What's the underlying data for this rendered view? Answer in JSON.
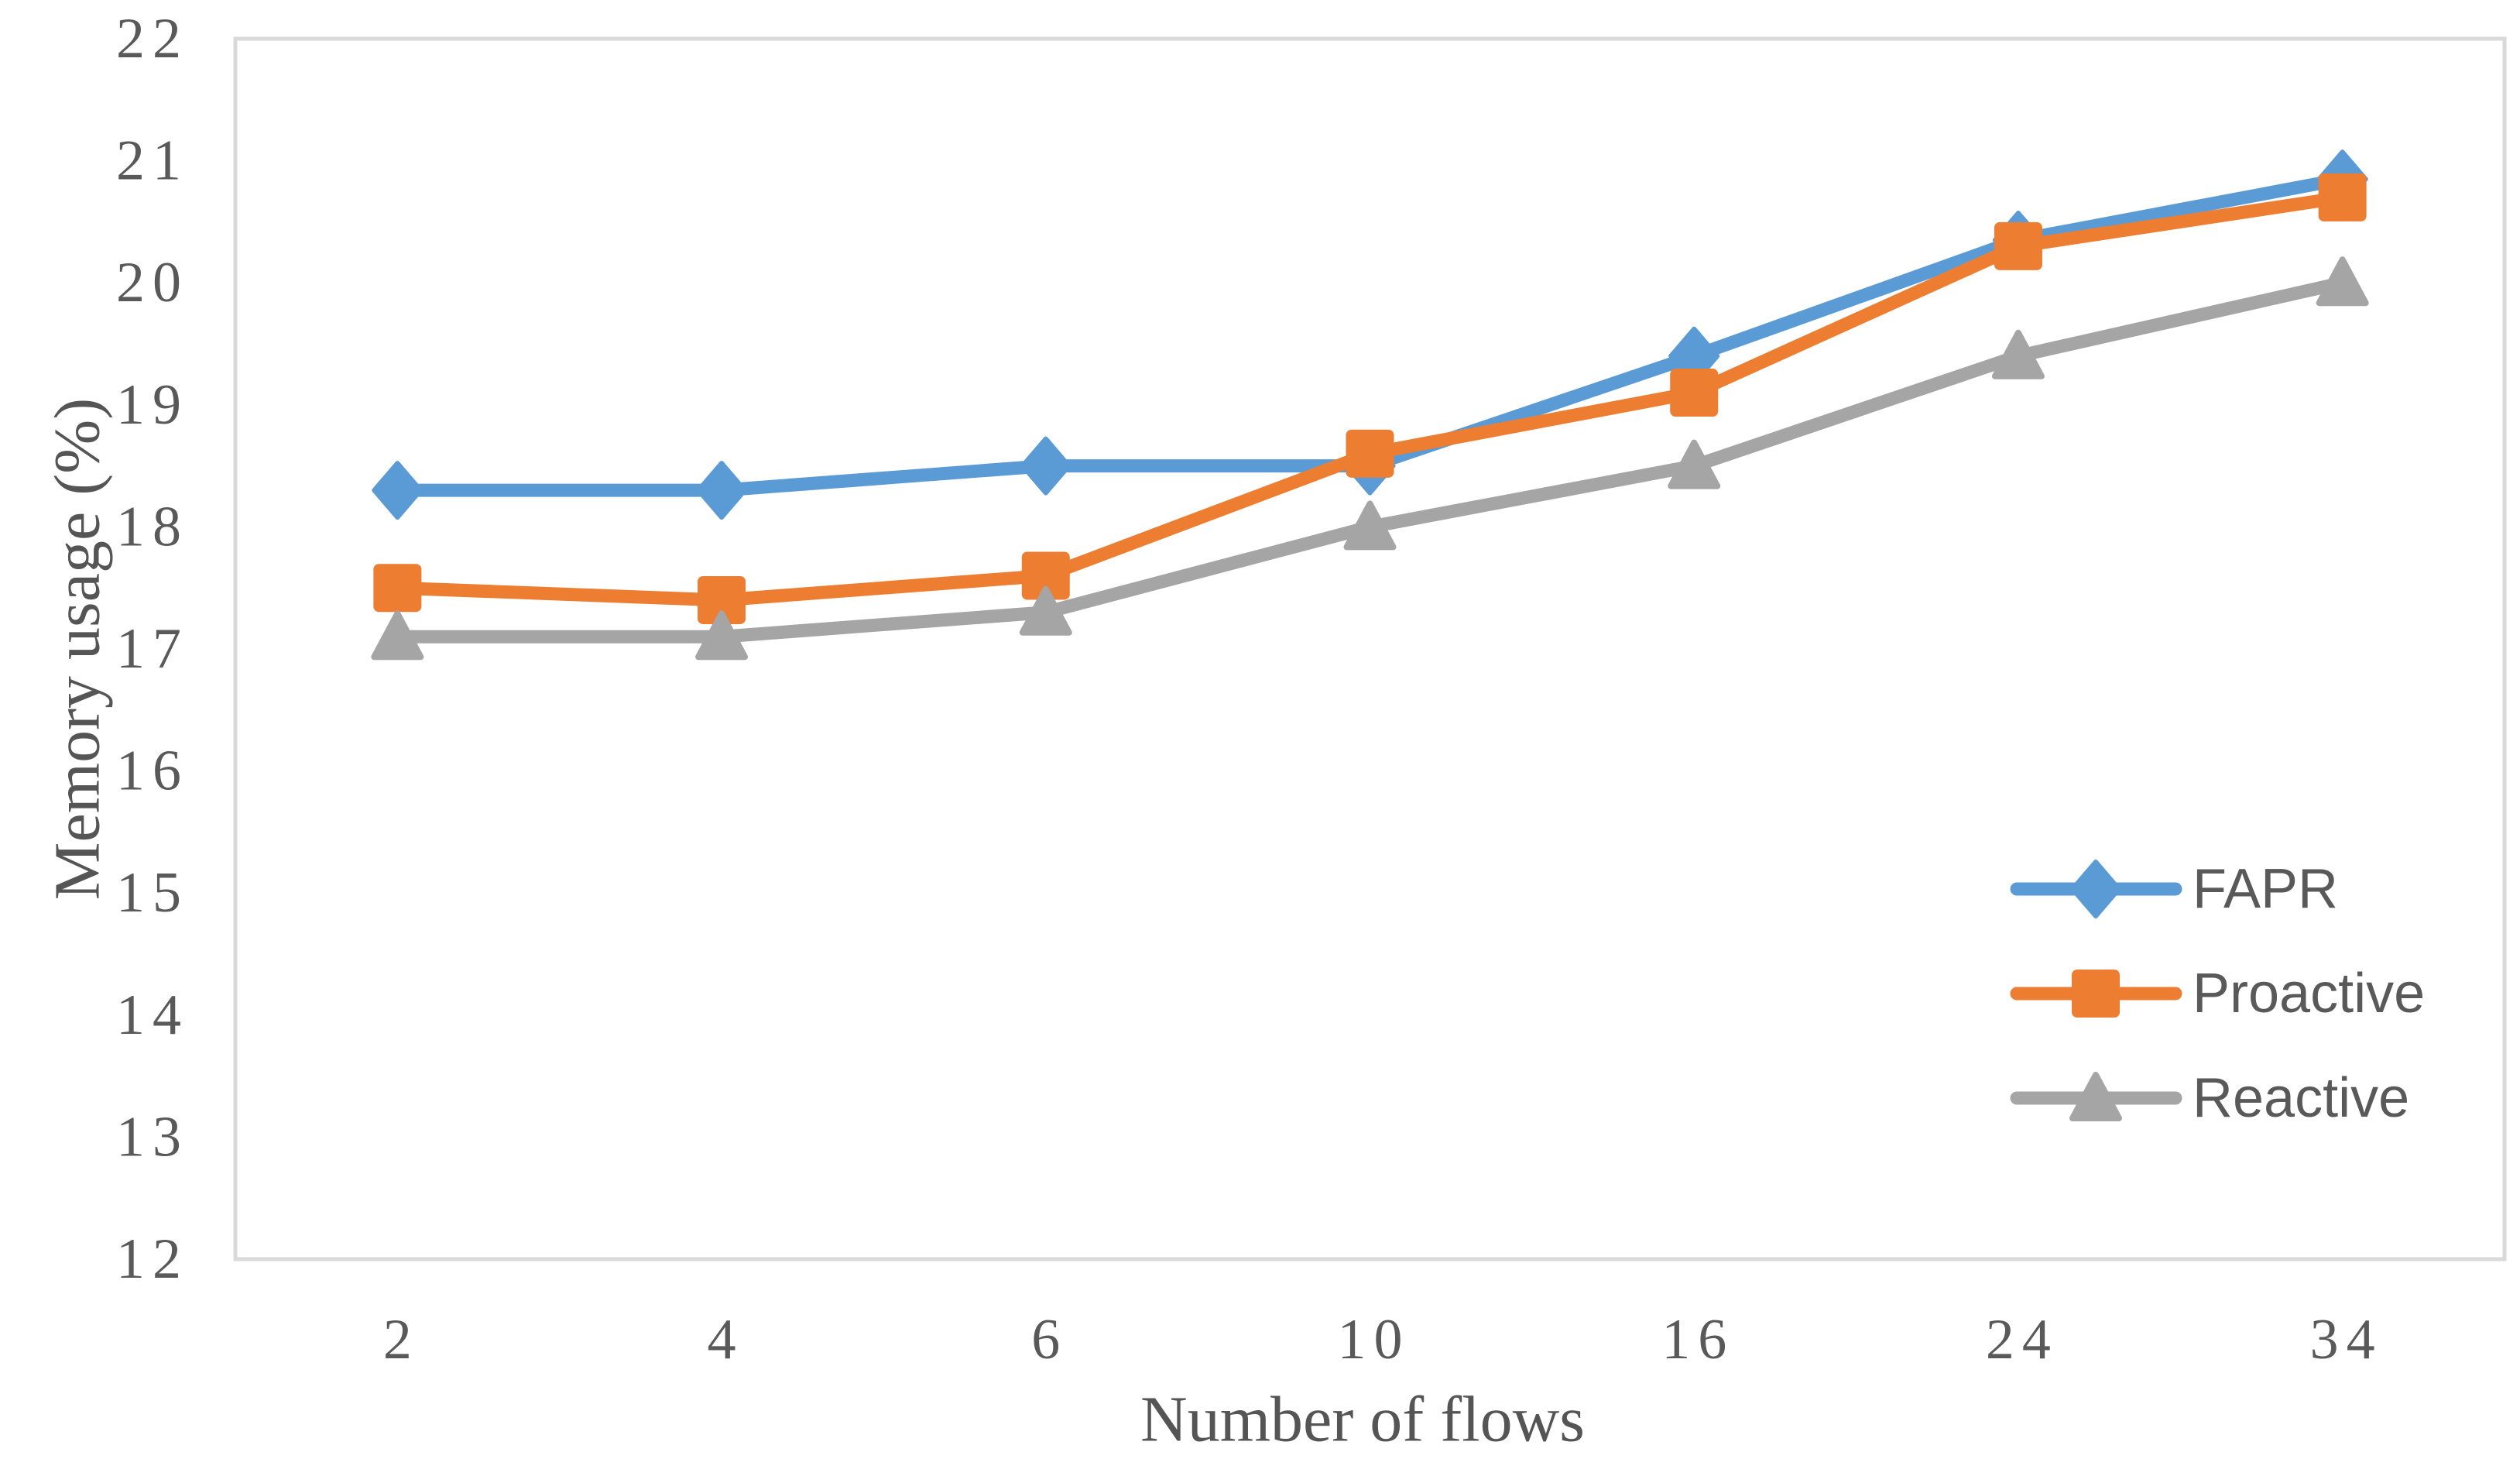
{
  "chart_data": {
    "type": "line",
    "title": "",
    "xlabel": "Number of flows",
    "ylabel": "Memory usage (%)",
    "categories": [
      2,
      4,
      6,
      10,
      16,
      24,
      34
    ],
    "x_tick_labels": [
      "2",
      "4",
      "6",
      "10",
      "16",
      "24",
      "34"
    ],
    "y_ticks": [
      12,
      13,
      14,
      15,
      16,
      17,
      18,
      19,
      20,
      21,
      22
    ],
    "ylim": [
      12,
      22
    ],
    "grid": false,
    "legend_position": "inside-right",
    "series": [
      {
        "name": "FAPR",
        "marker": "diamond",
        "color": "#5B9BD5",
        "values": [
          18.3,
          18.3,
          18.5,
          18.5,
          19.4,
          20.35,
          20.85
        ]
      },
      {
        "name": "Proactive",
        "marker": "square",
        "color": "#ED7D31",
        "values": [
          17.5,
          17.4,
          17.6,
          18.6,
          19.1,
          20.3,
          20.7
        ]
      },
      {
        "name": "Reactive",
        "marker": "triangle",
        "color": "#A5A5A5",
        "values": [
          17.1,
          17.1,
          17.3,
          18.0,
          18.5,
          19.4,
          20.0
        ]
      }
    ]
  },
  "colors": {
    "background": "#FFFFFF",
    "plot_border": "#D9D9D9",
    "tick_text": "#595959",
    "title_text": "#555555"
  }
}
